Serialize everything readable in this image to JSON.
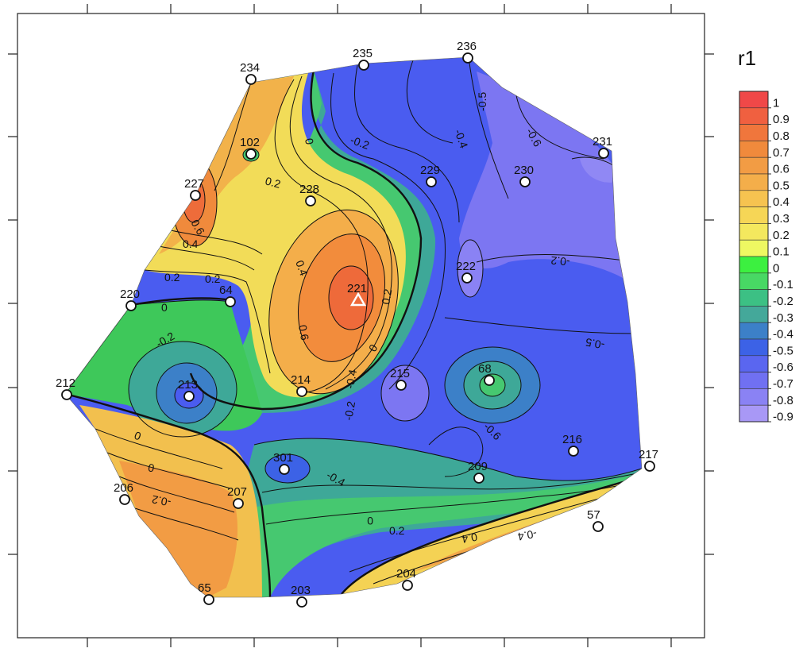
{
  "chart_data": {
    "type": "contour",
    "title": "",
    "xlabel": "",
    "ylabel": "",
    "colorbar": {
      "title": "r1",
      "ticks": [
        "1",
        "0.9",
        "0.8",
        "0.7",
        "0.6",
        "0.5",
        "0.4",
        "0.3",
        "0.2",
        "0.1",
        "0",
        "-0.1",
        "-0.2",
        "-0.3",
        "-0.4",
        "-0.5",
        "-0.6",
        "-0.7",
        "-0.8",
        "-0.9"
      ],
      "colors": [
        "#f04848",
        "#f06040",
        "#f0763c",
        "#f08a3c",
        "#f29c44",
        "#f4ae4a",
        "#f6c350",
        "#f6d656",
        "#f4e85e",
        "#eef862",
        "#3cf040",
        "#48d864",
        "#3cc084",
        "#44a89a",
        "#3c80c8",
        "#3c62e6",
        "#5a66f0",
        "#7070f2",
        "#8a82f4",
        "#a898f6"
      ]
    },
    "contour_labels": [
      "0",
      "-0.2",
      "-0.4",
      "-0.5",
      "-0.6",
      "0.2",
      "0",
      "0.2",
      "0.6",
      "0.4",
      "0.2",
      "0",
      "0.4",
      "0.6",
      "0.2",
      "0",
      "-0.2",
      "-0.4",
      "-0.2",
      "-0.4",
      "-0.6",
      "-0.5",
      "-0.2",
      "0",
      "0.2",
      "0.4",
      "0",
      "-0.2",
      "-0.4",
      "-0.2",
      "0",
      "0.2",
      "0.4"
    ],
    "stations": [
      {
        "label": "234",
        "value": 0.55
      },
      {
        "label": "235",
        "value": -0.25
      },
      {
        "label": "236",
        "value": -0.45
      },
      {
        "label": "231",
        "value": -0.75
      },
      {
        "label": "102",
        "value": -0.1
      },
      {
        "label": "229",
        "value": -0.25
      },
      {
        "label": "230",
        "value": -0.65
      },
      {
        "label": "227",
        "value": 0.75
      },
      {
        "label": "228",
        "value": 0.2
      },
      {
        "label": "222",
        "value": -0.75
      },
      {
        "label": "221",
        "value": 0.8
      },
      {
        "label": "220",
        "value": 0.1
      },
      {
        "label": "64",
        "value": 0.05
      },
      {
        "label": "212",
        "value": -0.05
      },
      {
        "label": "213",
        "value": -0.5
      },
      {
        "label": "214",
        "value": 0.45
      },
      {
        "label": "215",
        "value": -0.7
      },
      {
        "label": "68",
        "value": -0.1
      },
      {
        "label": "216",
        "value": -0.45
      },
      {
        "label": "217",
        "value": -0.4
      },
      {
        "label": "301",
        "value": -0.45
      },
      {
        "label": "209",
        "value": -0.4
      },
      {
        "label": "206",
        "value": 0.45
      },
      {
        "label": "207",
        "value": 0.5
      },
      {
        "label": "57",
        "value": 0.45
      },
      {
        "label": "204",
        "value": 0.3
      },
      {
        "label": "65",
        "value": 0.4
      },
      {
        "label": "203",
        "value": -0.05
      }
    ]
  }
}
